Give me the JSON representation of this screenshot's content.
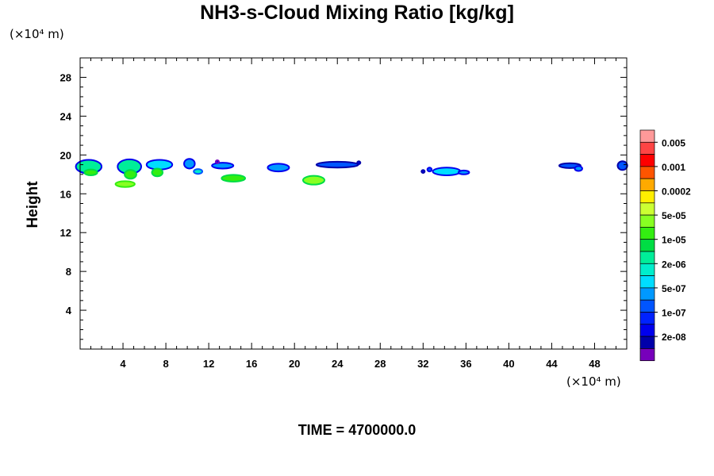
{
  "chart_data": {
    "type": "heatmap",
    "title": "NH3-s-Cloud Mixing Ratio [kg/kg]",
    "ylabel": "Height",
    "y_unit": "(×10⁴ m)",
    "x_unit": "(×10⁴ m)",
    "time_label": "TIME = 4700000.0",
    "xlim": [
      0,
      51
    ],
    "ylim": [
      0,
      30
    ],
    "x_ticks": [
      4,
      8,
      12,
      16,
      20,
      24,
      28,
      32,
      36,
      40,
      44,
      48
    ],
    "y_ticks": [
      4,
      8,
      12,
      16,
      20,
      24,
      28
    ],
    "colorbar": {
      "labels": [
        "0.005",
        "0.001",
        "0.0002",
        "5e-05",
        "1e-05",
        "2e-06",
        "5e-07",
        "1e-07",
        "2e-08"
      ],
      "colors": [
        "#ff9999",
        "#ff4444",
        "#ff0000",
        "#ff5500",
        "#ffaa00",
        "#ffee00",
        "#ccff33",
        "#88ff22",
        "#33ee11",
        "#00dd44",
        "#00ee99",
        "#00eecc",
        "#00ddff",
        "#0099ff",
        "#0055ff",
        "#0022ff",
        "#0000ee",
        "#0000aa",
        "#7700bb"
      ]
    },
    "cloud_features": [
      {
        "x": 0.8,
        "y": 18.8,
        "w": 2.4,
        "h": 1.4,
        "color": "#00ee99",
        "edge": "#0000ee"
      },
      {
        "x": 1.0,
        "y": 18.2,
        "w": 1.2,
        "h": 0.6,
        "color": "#33ee11",
        "edge": "#00dd44"
      },
      {
        "x": 4.6,
        "y": 18.8,
        "w": 2.2,
        "h": 1.5,
        "color": "#00ee99",
        "edge": "#0000ee"
      },
      {
        "x": 4.7,
        "y": 18.0,
        "w": 1.1,
        "h": 0.9,
        "color": "#33ee11",
        "edge": "#00dd44"
      },
      {
        "x": 4.2,
        "y": 17.0,
        "w": 1.8,
        "h": 0.6,
        "color": "#88ff22",
        "edge": "#33ee11"
      },
      {
        "x": 7.4,
        "y": 19.0,
        "w": 2.4,
        "h": 1.0,
        "color": "#00ddff",
        "edge": "#0000ee"
      },
      {
        "x": 7.2,
        "y": 18.2,
        "w": 1.0,
        "h": 0.8,
        "color": "#33ee11",
        "edge": "#00dd44"
      },
      {
        "x": 10.2,
        "y": 19.1,
        "w": 1.0,
        "h": 1.0,
        "color": "#0099ff",
        "edge": "#0000ee"
      },
      {
        "x": 11.0,
        "y": 18.3,
        "w": 0.8,
        "h": 0.5,
        "color": "#00eecc",
        "edge": "#0055ff"
      },
      {
        "x": 13.3,
        "y": 18.9,
        "w": 2.0,
        "h": 0.6,
        "color": "#0099ff",
        "edge": "#0000ee"
      },
      {
        "x": 14.3,
        "y": 17.6,
        "w": 2.2,
        "h": 0.7,
        "color": "#33ee11",
        "edge": "#00dd44"
      },
      {
        "x": 18.5,
        "y": 18.7,
        "w": 2.0,
        "h": 0.8,
        "color": "#0099ff",
        "edge": "#0000ee"
      },
      {
        "x": 21.8,
        "y": 17.4,
        "w": 2.0,
        "h": 0.9,
        "color": "#88ff22",
        "edge": "#00dd44"
      },
      {
        "x": 24.0,
        "y": 19.0,
        "w": 3.9,
        "h": 0.6,
        "color": "#0055ff",
        "edge": "#0000aa"
      },
      {
        "x": 34.2,
        "y": 18.3,
        "w": 2.6,
        "h": 0.8,
        "color": "#00ddff",
        "edge": "#0000ee"
      },
      {
        "x": 35.8,
        "y": 18.2,
        "w": 1.0,
        "h": 0.4,
        "color": "#0099ff",
        "edge": "#0000ee"
      },
      {
        "x": 32.6,
        "y": 18.5,
        "w": 0.4,
        "h": 0.4,
        "color": "#0055ff",
        "edge": "#0000ee"
      },
      {
        "x": 45.7,
        "y": 18.9,
        "w": 2.0,
        "h": 0.5,
        "color": "#0055ff",
        "edge": "#0000aa"
      },
      {
        "x": 46.5,
        "y": 18.6,
        "w": 0.7,
        "h": 0.5,
        "color": "#0099ff",
        "edge": "#0000ee"
      },
      {
        "x": 50.6,
        "y": 18.9,
        "w": 0.9,
        "h": 0.9,
        "color": "#0055ff",
        "edge": "#0000aa"
      },
      {
        "x": 26.0,
        "y": 19.2,
        "w": 0.3,
        "h": 0.3,
        "color": "#0000ee",
        "edge": "#0000aa"
      },
      {
        "x": 12.8,
        "y": 19.3,
        "w": 0.3,
        "h": 0.3,
        "color": "#0000ee",
        "edge": "#7700bb"
      },
      {
        "x": 32.0,
        "y": 18.3,
        "w": 0.3,
        "h": 0.3,
        "color": "#0000ee",
        "edge": "#0000aa"
      }
    ]
  }
}
